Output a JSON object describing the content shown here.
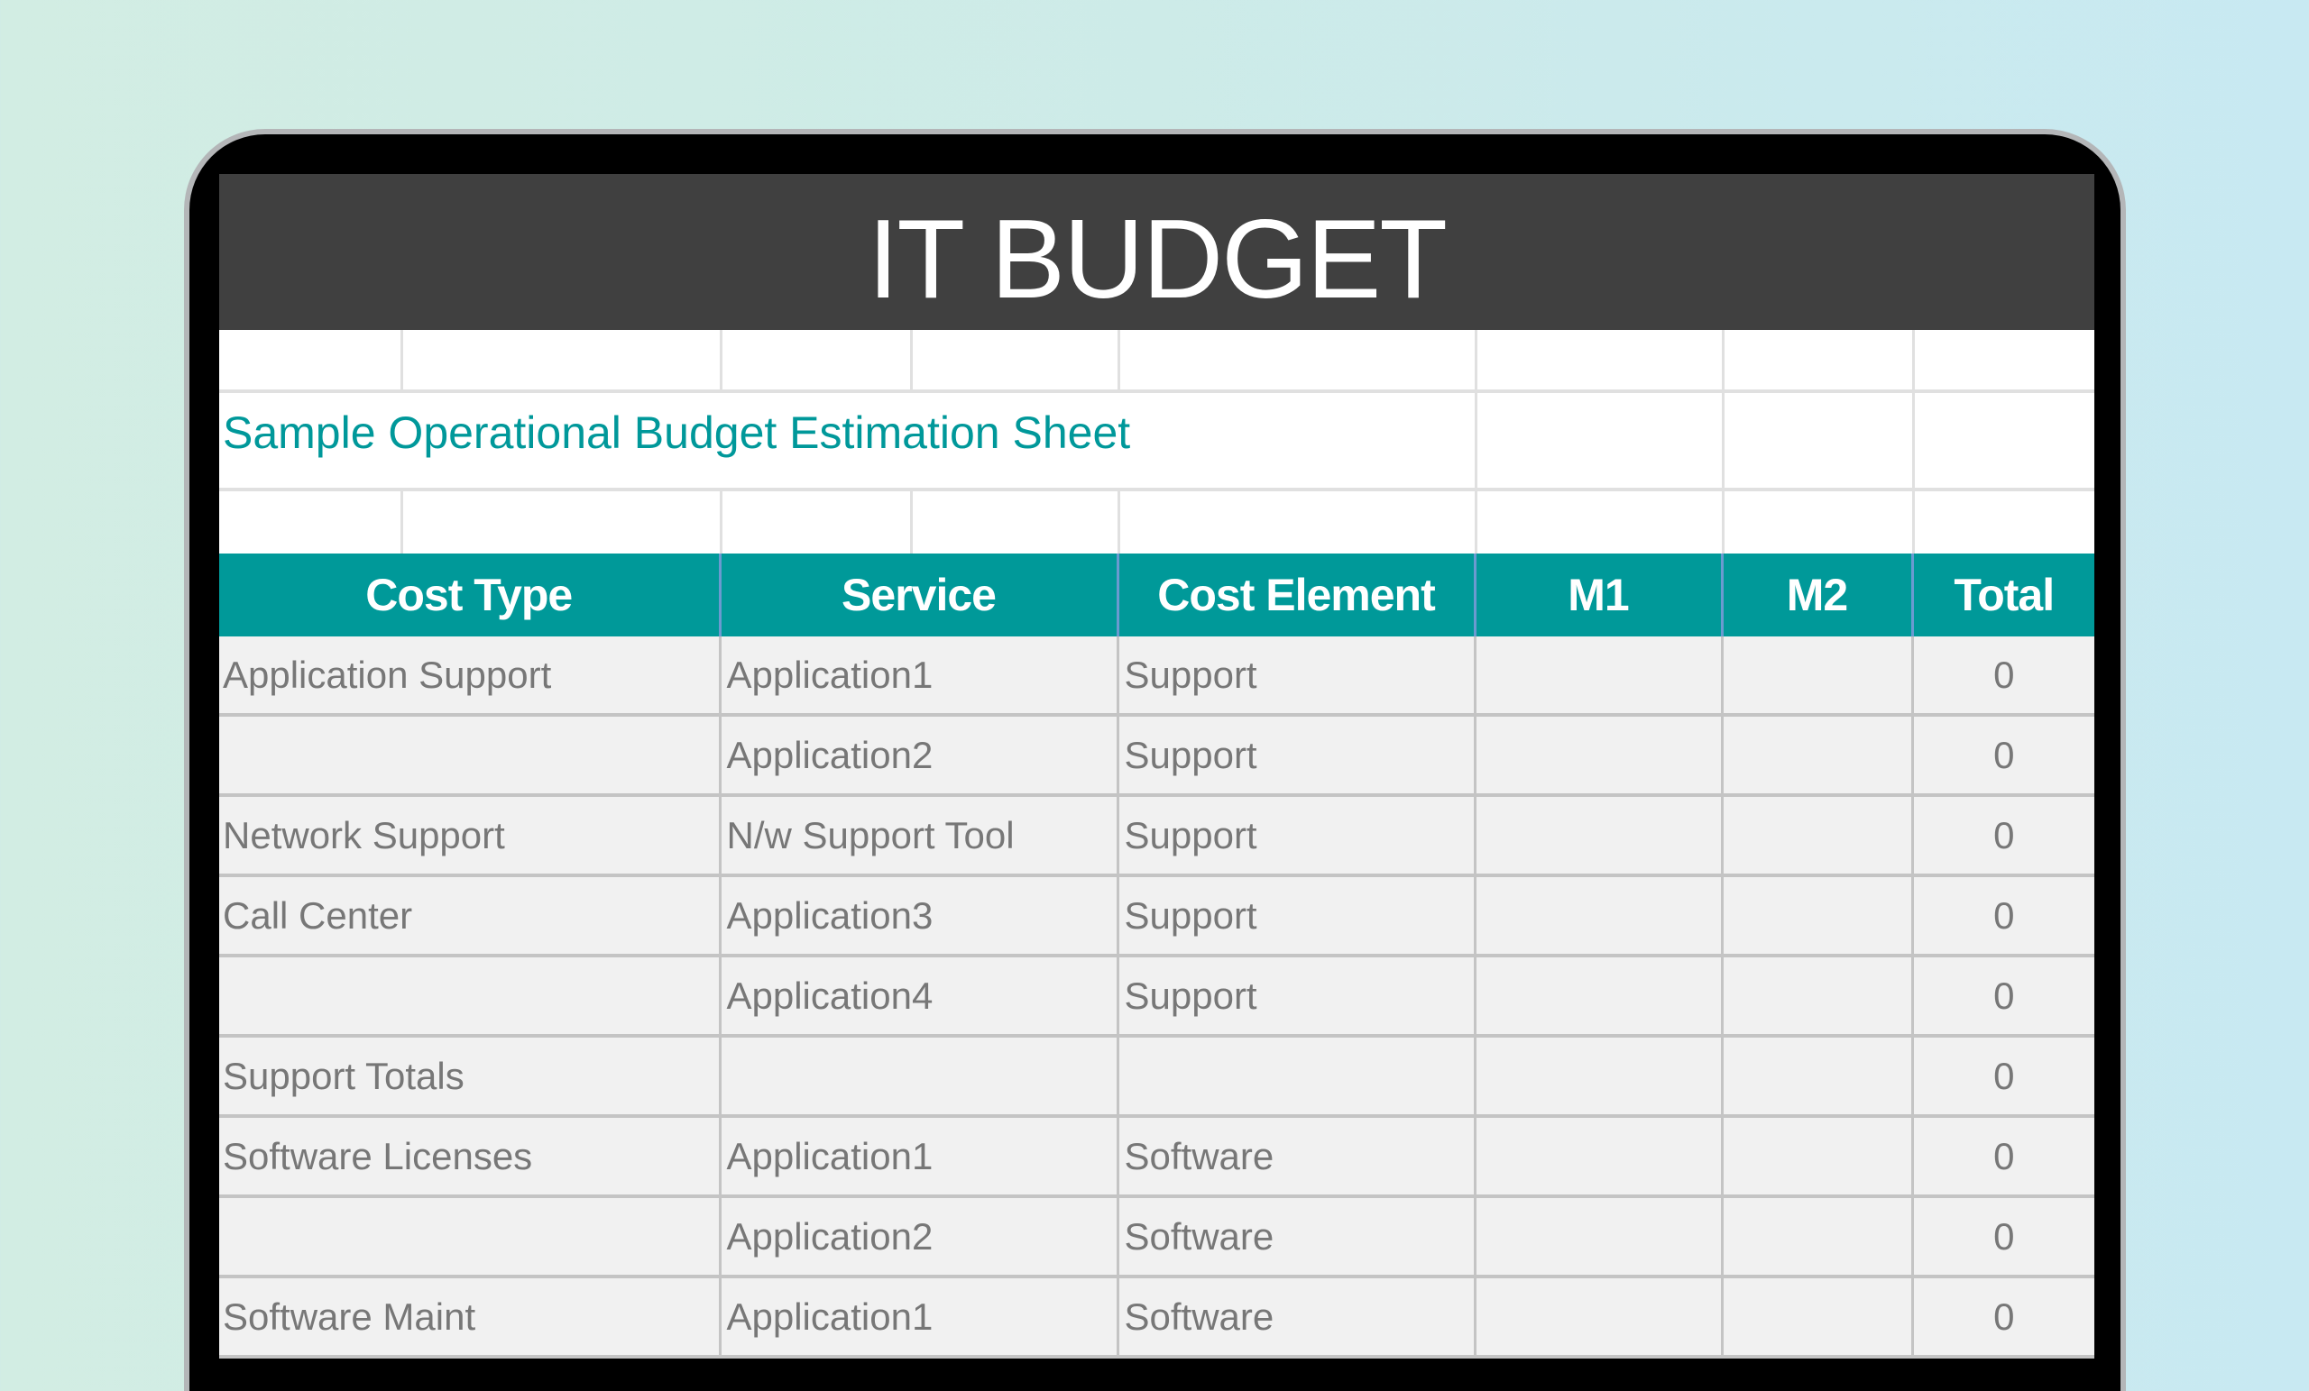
{
  "title": "IT BUDGET",
  "subtitle": "Sample Operational Budget Estimation Sheet",
  "colors": {
    "header_bg": "#009999",
    "title_bg": "#404040",
    "subtitle": "#00989a",
    "cell_bg": "#f1f1f1",
    "cell_text": "#777777"
  },
  "table": {
    "columns": [
      "Cost Type",
      "Service",
      "Cost Element",
      "M1",
      "M2",
      "Total"
    ],
    "rows": [
      {
        "cost_type": "Application Support",
        "service": "Application1",
        "cost_element": "Support",
        "m1": "",
        "m2": "",
        "total": "0"
      },
      {
        "cost_type": "",
        "service": "Application2",
        "cost_element": "Support",
        "m1": "",
        "m2": "",
        "total": "0"
      },
      {
        "cost_type": "Network Support",
        "service": "N/w Support Tool",
        "cost_element": "Support",
        "m1": "",
        "m2": "",
        "total": "0"
      },
      {
        "cost_type": "Call Center",
        "service": "Application3",
        "cost_element": "Support",
        "m1": "",
        "m2": "",
        "total": "0"
      },
      {
        "cost_type": "",
        "service": "Application4",
        "cost_element": "Support",
        "m1": "",
        "m2": "",
        "total": "0"
      },
      {
        "cost_type": "Support Totals",
        "service": "",
        "cost_element": "",
        "m1": "",
        "m2": "",
        "total": "0"
      },
      {
        "cost_type": "Software Licenses",
        "service": "Application1",
        "cost_element": "Software",
        "m1": "",
        "m2": "",
        "total": "0"
      },
      {
        "cost_type": "",
        "service": "Application2",
        "cost_element": "Software",
        "m1": "",
        "m2": "",
        "total": "0"
      },
      {
        "cost_type": "Software Maint",
        "service": "Application1",
        "cost_element": "Software",
        "m1": "",
        "m2": "",
        "total": "0"
      }
    ]
  }
}
